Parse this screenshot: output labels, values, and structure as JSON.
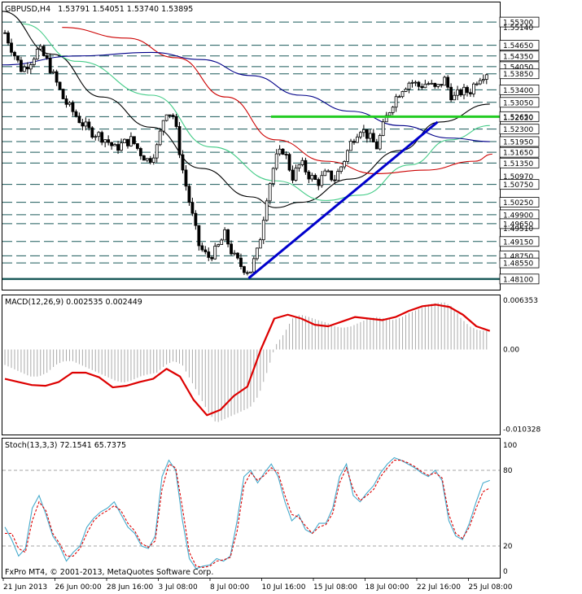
{
  "chart_data": {
    "type": "candlestick",
    "main": {
      "title": "GBPUSD,H4",
      "ohlc": "1.53791 1.54051 1.53740 1.53895",
      "ylim": [
        1.478,
        1.5585
      ],
      "price_levels": [
        "1.55300",
        "1.54650",
        "1.54350",
        "1.54050",
        "1.53850",
        "1.53400",
        "1.53050",
        "1.52650",
        "1.52300",
        "1.51950",
        "1.51650",
        "1.51350",
        "1.50750",
        "1.50250",
        "1.49900",
        "1.49650",
        "1.49150",
        "1.48750",
        "1.48550",
        "1.48100"
      ],
      "current_price_tag": "1.53895",
      "extra_ticks": [
        {
          "label": "1.55140",
          "v": 1.5514
        },
        {
          "label": "1.52620",
          "v": 1.5262
        },
        {
          "label": "1.50970",
          "v": 1.5097
        },
        {
          "label": "1.49510",
          "v": 1.4951
        }
      ],
      "close_path": [
        1.55,
        1.5445,
        1.5395,
        1.542,
        1.5455,
        1.542,
        1.5365,
        1.531,
        1.528,
        1.525,
        1.5225,
        1.5215,
        1.52,
        1.5175,
        1.519,
        1.52,
        1.5165,
        1.514,
        1.518,
        1.5285,
        1.5265,
        1.512,
        1.5005,
        1.49,
        1.487,
        1.489,
        1.4935,
        1.4875,
        1.4845,
        1.483,
        1.4895,
        1.5045,
        1.5145,
        1.5175,
        1.5095,
        1.5135,
        1.51,
        1.508,
        1.5105,
        1.509,
        1.5135,
        1.5195,
        1.5235,
        1.521,
        1.518,
        1.5255,
        1.531,
        1.5345,
        1.5365,
        1.535,
        1.536,
        1.534,
        1.537,
        1.5315,
        1.5335,
        1.5335,
        1.5375,
        1.539
      ],
      "support_line": {
        "v": 1.5265,
        "color": "#22cc22"
      },
      "trend_line": {
        "from": [
          0.495,
          1.4812
        ],
        "to": [
          0.875,
          1.525
        ],
        "color": "#0000cc"
      },
      "moving_averages": [
        {
          "color": "#000000",
          "points": [
            [
              0,
              1.556
            ],
            [
              0.1,
              1.544
            ],
            [
              0.2,
              1.532
            ],
            [
              0.3,
              1.5235
            ],
            [
              0.4,
              1.512
            ],
            [
              0.5,
              1.504
            ],
            [
              0.55,
              1.501
            ],
            [
              0.6,
              1.5025
            ],
            [
              0.7,
              1.509
            ],
            [
              0.8,
              1.517
            ],
            [
              0.88,
              1.525
            ],
            [
              0.98,
              1.53
            ]
          ]
        },
        {
          "color": "#44cc88",
          "points": [
            [
              0.04,
              1.5525
            ],
            [
              0.15,
              1.542
            ],
            [
              0.3,
              1.5325
            ],
            [
              0.42,
              1.518
            ],
            [
              0.55,
              1.5085
            ],
            [
              0.65,
              1.503
            ],
            [
              0.72,
              1.5045
            ],
            [
              0.82,
              1.513
            ],
            [
              0.9,
              1.52
            ],
            [
              0.98,
              1.524
            ]
          ]
        },
        {
          "color": "#cc0000",
          "points": [
            [
              0.12,
              1.5515
            ],
            [
              0.25,
              1.5485
            ],
            [
              0.35,
              1.543
            ],
            [
              0.45,
              1.532
            ],
            [
              0.55,
              1.52
            ],
            [
              0.65,
              1.514
            ],
            [
              0.75,
              1.5105
            ],
            [
              0.85,
              1.5115
            ],
            [
              0.95,
              1.514
            ],
            [
              0.985,
              1.516
            ]
          ]
        },
        {
          "color": "#000088",
          "points": [
            [
              0.0,
              1.541
            ],
            [
              0.15,
              1.5435
            ],
            [
              0.3,
              1.5445
            ],
            [
              0.4,
              1.5425
            ],
            [
              0.5,
              1.538
            ],
            [
              0.6,
              1.5325
            ],
            [
              0.7,
              1.528
            ],
            [
              0.8,
              1.524
            ],
            [
              0.9,
              1.5205
            ],
            [
              0.98,
              1.5195
            ]
          ]
        }
      ]
    },
    "macd": {
      "label": "MACD(12,26,9) 0.002535 0.002449",
      "ylim": [
        -0.011,
        0.007
      ],
      "ticks": [
        {
          "label": "0.006353",
          "v": 0.006353
        },
        {
          "label": "0.00",
          "v": 0
        },
        {
          "label": "-0.010328",
          "v": -0.010328
        }
      ],
      "histogram": [
        -0.002,
        -0.0025,
        -0.003,
        -0.0035,
        -0.0035,
        -0.003,
        -0.002,
        -0.0015,
        -0.0015,
        -0.002,
        -0.0025,
        -0.003,
        -0.0035,
        -0.004,
        -0.0043,
        -0.004,
        -0.0035,
        -0.0032,
        -0.003,
        -0.002,
        -0.0015,
        -0.002,
        -0.004,
        -0.006,
        -0.008,
        -0.0095,
        -0.009,
        -0.0085,
        -0.008,
        -0.0075,
        -0.006,
        -0.003,
        0.0005,
        0.002,
        0.004,
        0.0045,
        0.0042,
        0.0038,
        0.0035,
        0.003,
        0.0028,
        0.003,
        0.0035,
        0.004,
        0.0042,
        0.004,
        0.0038,
        0.0042,
        0.0048,
        0.0052,
        0.0058,
        0.006,
        0.0061,
        0.0055,
        0.004,
        0.003,
        0.0025,
        0.0024
      ],
      "signal": [
        -0.0038,
        -0.0042,
        -0.0046,
        -0.0047,
        -0.0042,
        -0.003,
        -0.003,
        -0.0036,
        -0.0049,
        -0.0047,
        -0.0042,
        -0.0038,
        -0.0025,
        -0.0035,
        -0.0065,
        -0.0085,
        -0.0078,
        -0.006,
        -0.0048,
        0.0,
        0.004,
        0.0045,
        0.004,
        0.0032,
        0.003,
        0.0036,
        0.0042,
        0.004,
        0.0038,
        0.0042,
        0.005,
        0.0056,
        0.0058,
        0.0055,
        0.0045,
        0.003,
        0.0024
      ],
      "signal_color": "#dd0000",
      "hist_color": "#aaaaaa"
    },
    "stoch": {
      "label": "Stoch(13,3,3) 72.1541 65.7375",
      "ylim": [
        0,
        100
      ],
      "ticks": [
        {
          "label": "100",
          "v": 100
        },
        {
          "label": "80",
          "v": 80
        },
        {
          "label": "20",
          "v": 20
        },
        {
          "label": "0",
          "v": 0
        }
      ],
      "main_line": [
        35,
        25,
        12,
        18,
        50,
        60,
        45,
        28,
        20,
        8,
        15,
        20,
        35,
        42,
        47,
        50,
        55,
        45,
        35,
        30,
        20,
        18,
        28,
        75,
        88,
        80,
        40,
        10,
        2,
        4,
        5,
        10,
        8,
        12,
        40,
        75,
        80,
        70,
        78,
        85,
        75,
        55,
        40,
        45,
        33,
        30,
        38,
        38,
        50,
        75,
        85,
        60,
        55,
        62,
        68,
        78,
        85,
        90,
        88,
        85,
        82,
        78,
        75,
        80,
        72,
        40,
        28,
        25,
        38,
        55,
        70,
        72
      ],
      "signal_line": [
        30,
        30,
        18,
        15,
        40,
        55,
        48,
        30,
        22,
        12,
        12,
        18,
        30,
        40,
        45,
        48,
        52,
        48,
        38,
        32,
        22,
        19,
        24,
        65,
        85,
        82,
        50,
        15,
        4,
        3,
        4,
        8,
        9,
        11,
        32,
        68,
        78,
        72,
        76,
        82,
        78,
        60,
        45,
        43,
        36,
        30,
        35,
        37,
        46,
        70,
        82,
        65,
        56,
        60,
        65,
        75,
        82,
        88,
        88,
        86,
        83,
        79,
        76,
        78,
        74,
        45,
        30,
        26,
        35,
        50,
        63,
        66
      ],
      "main_color": "#44aacc",
      "signal_color": "#dd0000"
    },
    "time_labels": [
      "21 Jun 2013",
      "26 Jun 00:00",
      "28 Jun 16:00",
      "3 Jul 08:00",
      "8 Jul 00:00",
      "10 Jul 16:00",
      "15 Jul 08:00",
      "18 Jul 00:00",
      "22 Jul 16:00",
      "25 Jul 08:00"
    ],
    "copyright": "FxPro MT4, © 2001-2013, MetaQuotes Software Corp."
  }
}
